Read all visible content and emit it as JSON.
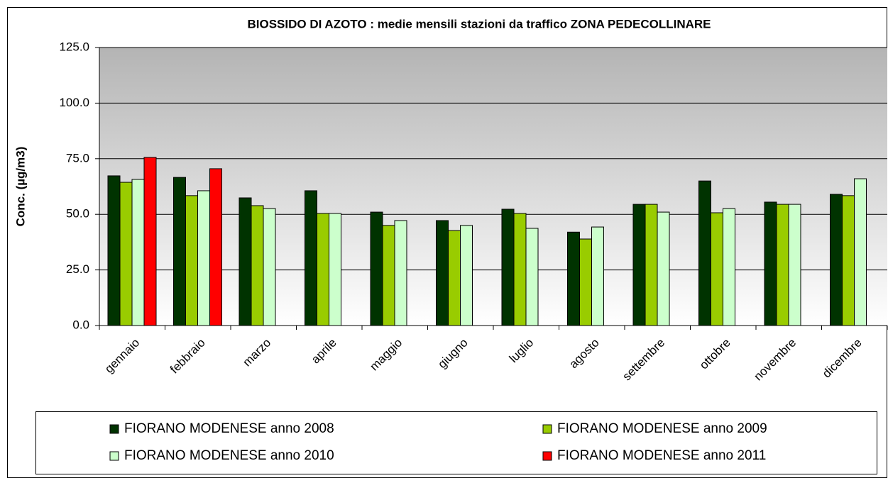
{
  "chart_data": {
    "type": "bar",
    "title": "BIOSSIDO DI AZOTO : medie mensili  stazioni da traffico ZONA PEDECOLLINARE",
    "y_label": "Conc. (µg/m3)",
    "categories": [
      "gennaio",
      "febbraio",
      "marzo",
      "aprile",
      "maggio",
      "giugno",
      "luglio",
      "agosto",
      "settembre",
      "ottobre",
      "novembre",
      "dicembre"
    ],
    "series": [
      {
        "name": "FIORANO MODENESE  anno 2008",
        "color": "#003300",
        "values": [
          67.3,
          66.6,
          57.4,
          60.6,
          51.0,
          47.2,
          52.3,
          42.0,
          54.5,
          65.0,
          55.5,
          59.0
        ]
      },
      {
        "name": "FIORANO MODENESE  anno 2009",
        "color": "#99cc00",
        "values": [
          64.4,
          58.4,
          53.9,
          50.4,
          45.0,
          42.7,
          50.4,
          38.9,
          54.5,
          50.7,
          54.5,
          58.4
        ]
      },
      {
        "name": "FIORANO MODENESE  anno 2010",
        "color": "#ccffcc",
        "values": [
          65.7,
          60.6,
          52.6,
          50.4,
          47.2,
          45.0,
          43.7,
          44.3,
          51.0,
          52.6,
          54.5,
          66.0
        ]
      },
      {
        "name": "FIORANO MODENESE  anno 2011",
        "color": "#ff0000",
        "values": [
          75.6,
          70.5,
          null,
          null,
          null,
          null,
          null,
          null,
          null,
          null,
          null,
          null
        ]
      }
    ],
    "ylim": [
      0,
      125
    ],
    "yticks": [
      {
        "value": 0,
        "label": "0.0"
      },
      {
        "value": 25,
        "label": "25.0"
      },
      {
        "value": 50,
        "label": "50.0"
      },
      {
        "value": 75,
        "label": "75.0"
      },
      {
        "value": 100,
        "label": "100.0"
      },
      {
        "value": 125,
        "label": "125.0"
      }
    ],
    "grid": true,
    "legend": "bottom"
  }
}
